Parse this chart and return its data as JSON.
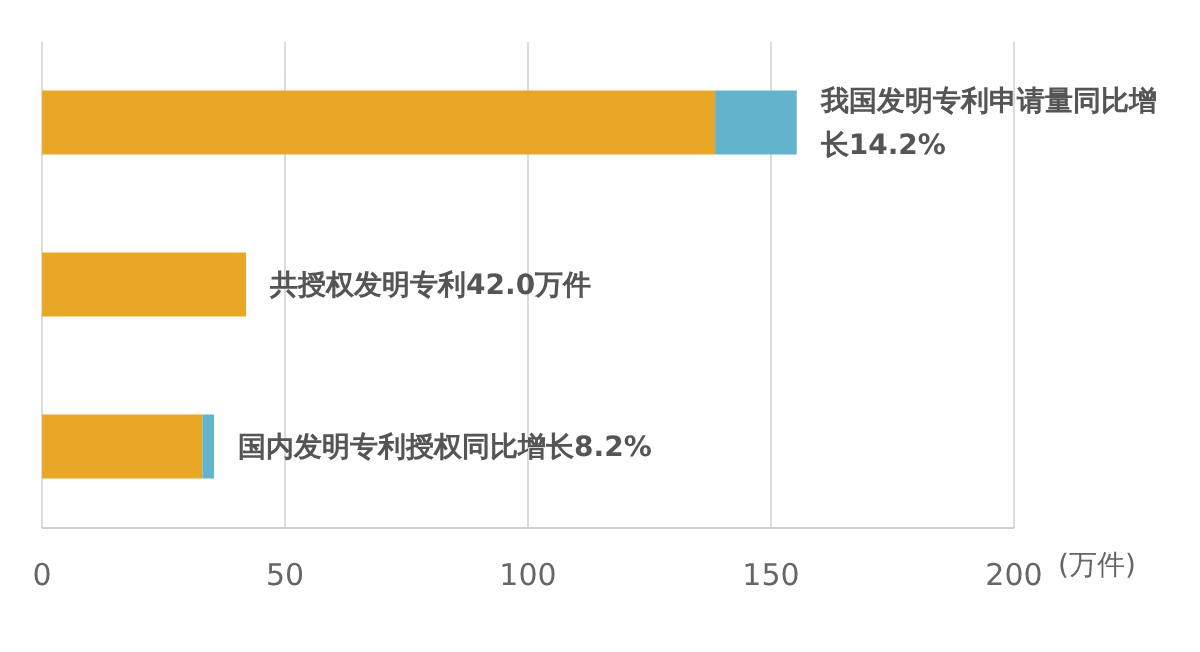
{
  "chart_data": {
    "type": "bar",
    "orientation": "horizontal",
    "stacked": true,
    "categories": [
      null,
      null,
      null
    ],
    "series": [
      {
        "color": "#e9a727",
        "values": [
          138.5,
          42,
          33
        ]
      },
      {
        "color": "#63b3cc",
        "values": [
          16.8,
          null,
          2.4
        ]
      }
    ],
    "xlim": [
      0,
      200
    ],
    "xticks": [
      0,
      50,
      100,
      150,
      200
    ],
    "xlabel": "(万件)",
    "grid": "x",
    "annotations": [
      {
        "text": "我国发明专利申请量同比增长14.2%",
        "x": 155.3
      },
      {
        "text": "共授权发明专利42.0万件",
        "x": 42
      },
      {
        "text": "国内发明专利授权同比增长8.2%",
        "x": 35.4
      }
    ]
  }
}
